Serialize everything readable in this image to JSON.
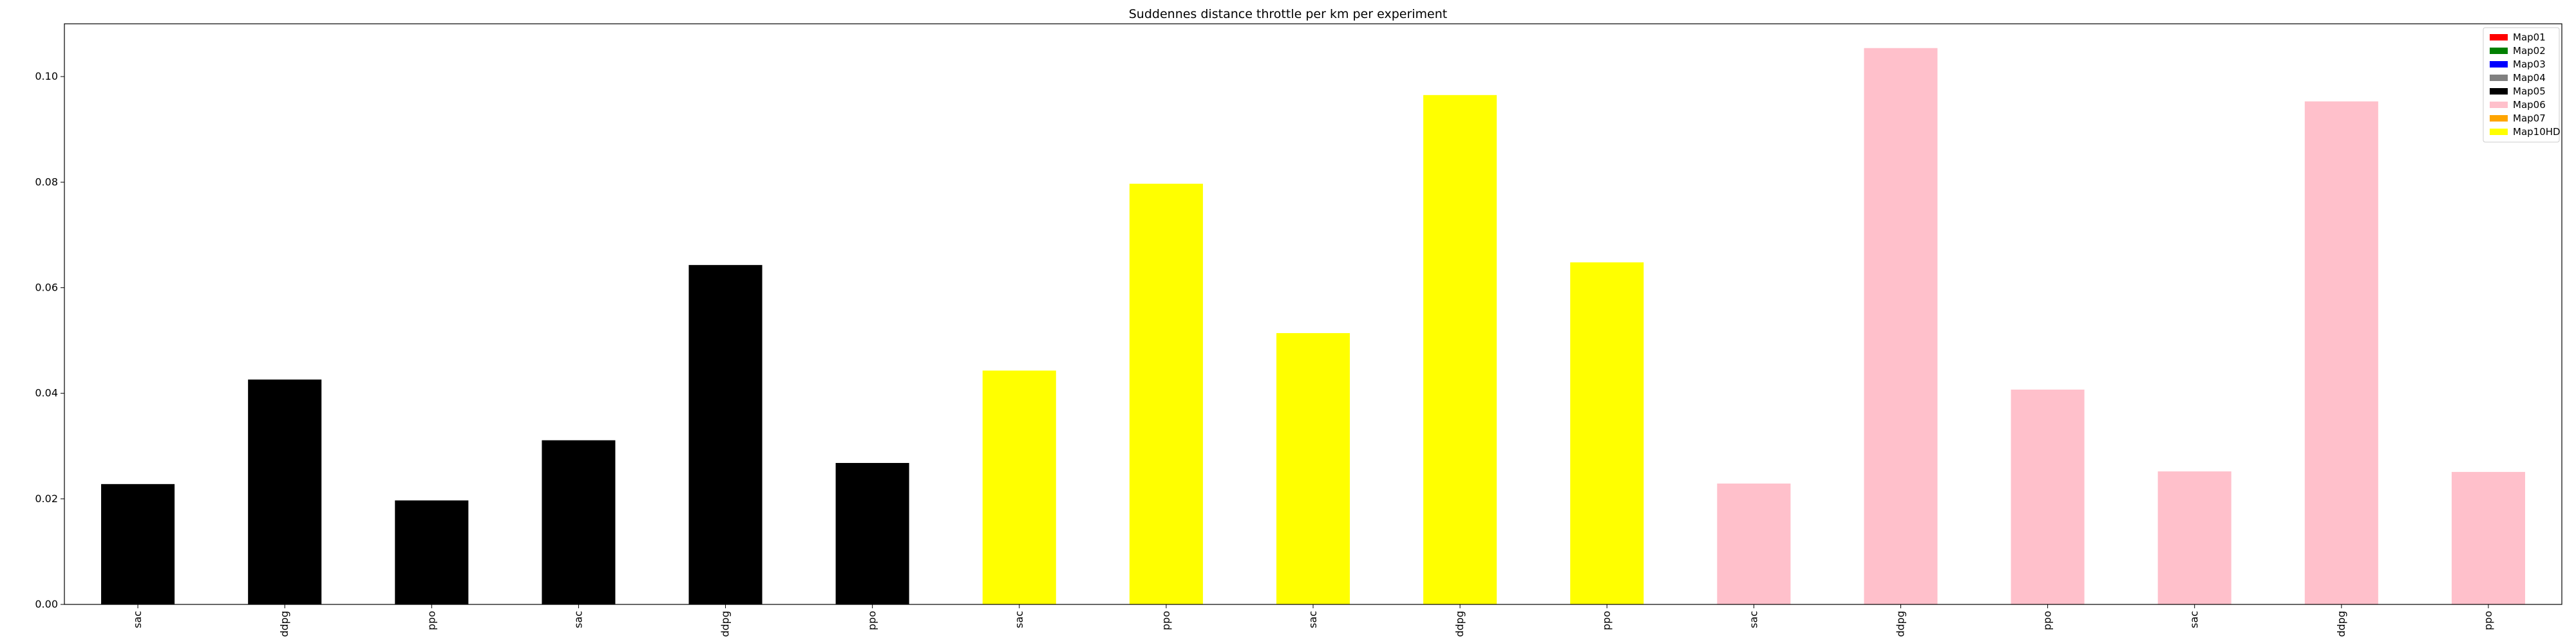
{
  "chart_data": {
    "type": "bar",
    "title": "Suddennes distance throttle per km per experiment",
    "xlabel": "",
    "ylabel": "",
    "ylim": [
      0,
      0.11
    ],
    "yticks": [
      0.0,
      0.02,
      0.04,
      0.06,
      0.08,
      0.1
    ],
    "ytick_labels": [
      "0.00",
      "0.02",
      "0.04",
      "0.06",
      "0.08",
      "0.10"
    ],
    "grid": false,
    "legend_position": "top-right",
    "legend": [
      {
        "label": "Map01",
        "color": "#ff0000"
      },
      {
        "label": "Map02",
        "color": "#008000"
      },
      {
        "label": "Map03",
        "color": "#0000ff"
      },
      {
        "label": "Map04",
        "color": "#808080"
      },
      {
        "label": "Map05",
        "color": "#000000"
      },
      {
        "label": "Map06",
        "color": "#ffc0cb"
      },
      {
        "label": "Map07",
        "color": "#ffa500"
      },
      {
        "label": "Map10HD",
        "color": "#ffff00"
      }
    ],
    "categories": [
      "sac",
      "ddpg",
      "ppo",
      "sac",
      "ddpg",
      "ppo",
      "sac",
      "ppo",
      "sac",
      "ddpg",
      "ppo",
      "sac",
      "ddpg",
      "ppo",
      "sac",
      "ddpg",
      "ppo"
    ],
    "values": [
      0.0228,
      0.0426,
      0.0197,
      0.0311,
      0.0643,
      0.0268,
      0.0443,
      0.0797,
      0.0514,
      0.0965,
      0.0648,
      0.0229,
      0.1054,
      0.0407,
      0.0252,
      0.0953,
      0.0251
    ],
    "bar_colors": [
      "#000000",
      "#000000",
      "#000000",
      "#000000",
      "#000000",
      "#000000",
      "#ffff00",
      "#ffff00",
      "#ffff00",
      "#ffff00",
      "#ffff00",
      "#ffc0cb",
      "#ffc0cb",
      "#ffc0cb",
      "#ffc0cb",
      "#ffc0cb",
      "#ffc0cb"
    ]
  }
}
